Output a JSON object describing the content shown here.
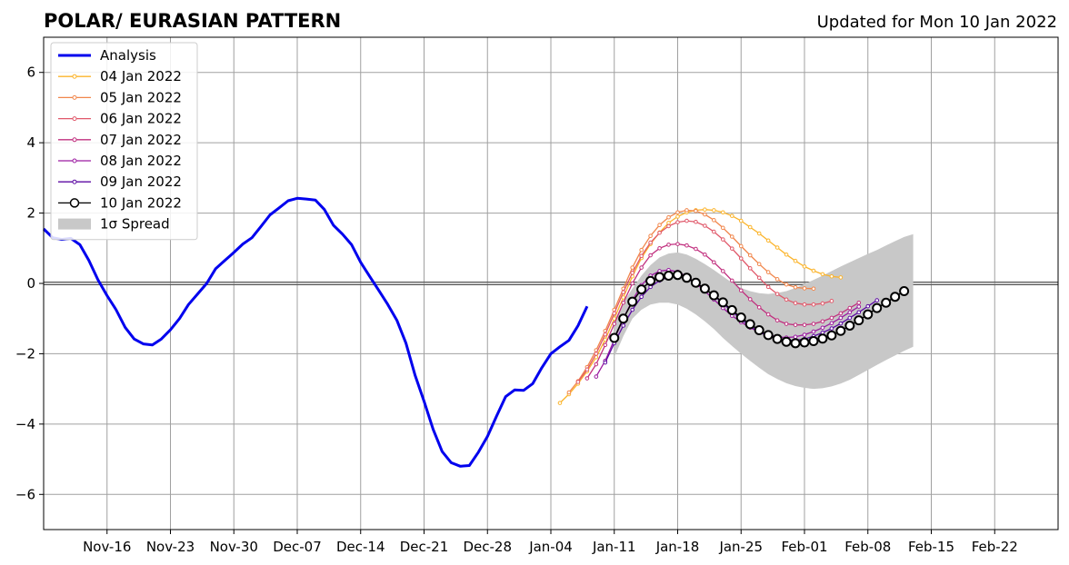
{
  "chart_data": {
    "type": "line",
    "title": "POLAR/ EURASIAN  PATTERN",
    "subtitle": "Updated for Mon 10 Jan 2022",
    "xlabel": "",
    "ylabel": "",
    "ylim": [
      -7,
      7
    ],
    "yticks": [
      -6,
      -4,
      -2,
      0,
      2,
      4,
      6
    ],
    "ytick_labels": [
      "−6",
      "−4",
      "−2",
      "0",
      "2",
      "4",
      "6"
    ],
    "xlim": [
      "2021-11-09",
      "2022-03-01"
    ],
    "xticks": [
      "2021-11-16",
      "2021-11-23",
      "2021-11-30",
      "2021-12-07",
      "2021-12-14",
      "2021-12-21",
      "2021-12-28",
      "2022-01-04",
      "2022-01-11",
      "2022-01-18",
      "2022-01-25",
      "2022-02-01",
      "2022-02-08",
      "2022-02-15",
      "2022-02-22"
    ],
    "xtick_labels": [
      "Nov-16",
      "Nov-23",
      "Nov-30",
      "Dec-07",
      "Dec-14",
      "Dec-21",
      "Dec-28",
      "Jan-04",
      "Jan-11",
      "Jan-18",
      "Jan-25",
      "Feb-01",
      "Feb-08",
      "Feb-15",
      "Feb-22"
    ],
    "grid": true,
    "zero_line": 0,
    "legend_position": "upper-left",
    "series": [
      {
        "name": "Analysis",
        "color": "#0000ee",
        "style": "line",
        "start": "2021-11-09",
        "values": [
          1.55,
          1.3,
          1.25,
          1.28,
          1.1,
          0.65,
          0.1,
          -0.35,
          -0.75,
          -1.25,
          -1.58,
          -1.72,
          -1.75,
          -1.58,
          -1.32,
          -1.0,
          -0.6,
          -0.3,
          0.0,
          0.42,
          0.65,
          0.88,
          1.12,
          1.3,
          1.62,
          1.95,
          2.15,
          2.35,
          2.42,
          2.4,
          2.37,
          2.1,
          1.65,
          1.4,
          1.1,
          0.6,
          0.2,
          -0.2,
          -0.6,
          -1.05,
          -1.7,
          -2.6,
          -3.35,
          -4.15,
          -4.78,
          -5.1,
          -5.2,
          -5.18,
          -4.8,
          -4.35,
          -3.78,
          -3.22,
          -3.03,
          -3.04,
          -2.85,
          -2.4,
          -2.0,
          -1.8,
          -1.62,
          -1.2,
          -0.65
        ]
      },
      {
        "name": "04 Jan 2022",
        "color": "#fbb42b",
        "style": "forecast",
        "start": "2022-01-05",
        "values": [
          -3.4,
          -3.15,
          -2.85,
          -2.5,
          -2.1,
          -1.6,
          -1.0,
          -0.4,
          0.2,
          0.72,
          1.12,
          1.45,
          1.72,
          1.9,
          2.02,
          2.08,
          2.1,
          2.08,
          2.02,
          1.92,
          1.78,
          1.6,
          1.42,
          1.22,
          1.02,
          0.82,
          0.64,
          0.48,
          0.36,
          0.26,
          0.2,
          0.17
        ]
      },
      {
        "name": "05 Jan 2022",
        "color": "#f1864b",
        "style": "forecast",
        "start": "2022-01-06",
        "values": [
          -3.1,
          -2.78,
          -2.38,
          -1.9,
          -1.35,
          -0.75,
          -0.15,
          0.45,
          0.95,
          1.35,
          1.66,
          1.88,
          2.02,
          2.08,
          2.06,
          1.96,
          1.8,
          1.58,
          1.33,
          1.06,
          0.8,
          0.55,
          0.32,
          0.12,
          -0.03,
          -0.11,
          -0.14,
          -0.15
        ]
      },
      {
        "name": "06 Jan 2022",
        "color": "#e0586a",
        "style": "forecast",
        "start": "2022-01-07",
        "values": [
          -2.8,
          -2.45,
          -2.0,
          -1.45,
          -0.85,
          -0.25,
          0.3,
          0.78,
          1.16,
          1.44,
          1.63,
          1.74,
          1.78,
          1.75,
          1.64,
          1.47,
          1.25,
          0.99,
          0.71,
          0.43,
          0.16,
          -0.1,
          -0.3,
          -0.46,
          -0.56,
          -0.6,
          -0.6,
          -0.57,
          -0.5
        ]
      },
      {
        "name": "07 Jan 2022",
        "color": "#c1307f",
        "style": "forecast",
        "start": "2022-01-08",
        "values": [
          -2.7,
          -2.3,
          -1.75,
          -1.15,
          -0.55,
          0.0,
          0.45,
          0.8,
          1.0,
          1.1,
          1.12,
          1.08,
          0.98,
          0.82,
          0.6,
          0.35,
          0.08,
          -0.2,
          -0.45,
          -0.68,
          -0.88,
          -1.05,
          -1.15,
          -1.18,
          -1.18,
          -1.15,
          -1.08,
          -0.98,
          -0.85,
          -0.7,
          -0.55
        ]
      },
      {
        "name": "08 Jan 2022",
        "color": "#9b1ba1",
        "style": "forecast",
        "start": "2022-01-09",
        "values": [
          -2.65,
          -2.2,
          -1.6,
          -1.0,
          -0.48,
          -0.05,
          0.22,
          0.35,
          0.38,
          0.33,
          0.2,
          0.0,
          -0.22,
          -0.46,
          -0.7,
          -0.92,
          -1.1,
          -1.26,
          -1.38,
          -1.46,
          -1.52,
          -1.54,
          -1.52,
          -1.46,
          -1.37,
          -1.26,
          -1.13,
          -0.98,
          -0.82,
          -0.66
        ]
      },
      {
        "name": "09 Jan 2022",
        "color": "#5c0aa3",
        "style": "forecast",
        "start": "2022-01-10",
        "values": [
          -2.25,
          -1.7,
          -1.2,
          -0.75,
          -0.38,
          -0.1,
          0.08,
          0.18,
          0.2,
          0.14,
          0.02,
          -0.15,
          -0.35,
          -0.57,
          -0.8,
          -1.02,
          -1.22,
          -1.38,
          -1.5,
          -1.58,
          -1.62,
          -1.62,
          -1.58,
          -1.5,
          -1.4,
          -1.28,
          -1.14,
          -0.98,
          -0.82,
          -0.65,
          -0.48
        ]
      },
      {
        "name": "10 Jan 2022",
        "color": "#000000",
        "style": "current",
        "start": "2022-01-11",
        "values": [
          -1.55,
          -1.0,
          -0.52,
          -0.17,
          0.07,
          0.18,
          0.22,
          0.24,
          0.16,
          0.02,
          -0.15,
          -0.34,
          -0.54,
          -0.76,
          -0.97,
          -1.16,
          -1.33,
          -1.47,
          -1.58,
          -1.66,
          -1.7,
          -1.68,
          -1.64,
          -1.57,
          -1.48,
          -1.35,
          -1.2,
          -1.05,
          -0.88,
          -0.7,
          -0.55,
          -0.38,
          -0.22
        ]
      }
    ],
    "spread": {
      "name": "1σ Spread",
      "color": "#c8c8c8",
      "start": "2022-01-11",
      "upper": [
        -1.05,
        -0.55,
        -0.15,
        0.22,
        0.52,
        0.74,
        0.85,
        0.88,
        0.82,
        0.7,
        0.55,
        0.38,
        0.2,
        0.02,
        -0.13,
        -0.22,
        -0.28,
        -0.3,
        -0.27,
        -0.22,
        -0.13,
        -0.02,
        0.1,
        0.22,
        0.35,
        0.48,
        0.6,
        0.72,
        0.84,
        0.95,
        1.08,
        1.2,
        1.32,
        1.4
      ],
      "lower": [
        -2.1,
        -1.5,
        -1.0,
        -0.75,
        -0.6,
        -0.55,
        -0.55,
        -0.6,
        -0.72,
        -0.88,
        -1.08,
        -1.3,
        -1.55,
        -1.78,
        -2.0,
        -2.2,
        -2.4,
        -2.58,
        -2.72,
        -2.84,
        -2.92,
        -2.97,
        -3.0,
        -2.98,
        -2.93,
        -2.85,
        -2.74,
        -2.6,
        -2.46,
        -2.32,
        -2.18,
        -2.05,
        -1.92,
        -1.8
      ]
    }
  }
}
